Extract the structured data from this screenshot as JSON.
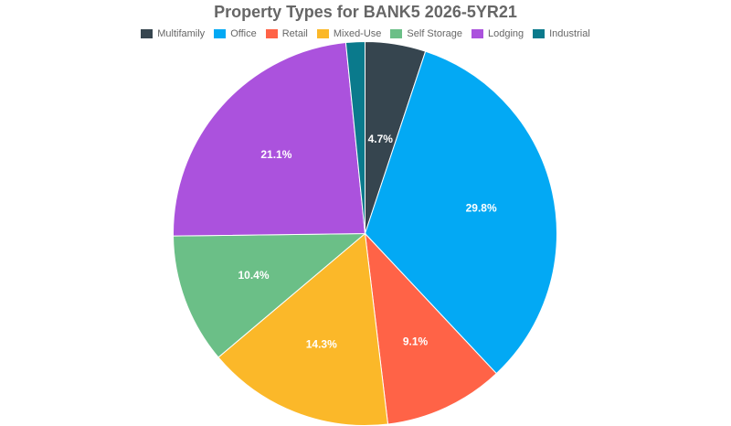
{
  "chart_data": {
    "type": "pie",
    "title": "Property Types for BANK5 2026-5YR21",
    "legend_position": "top",
    "start_angle": "12 o'clock, clockwise",
    "slices": [
      {
        "name": "Multifamily",
        "label": "4.7%",
        "value": 4.7,
        "draw": 5.1,
        "color": "#36454f"
      },
      {
        "name": "Office",
        "label": "29.8%",
        "value": 29.8,
        "draw": 32.9,
        "color": "#03a9f4"
      },
      {
        "name": "Retail",
        "label": "9.1%",
        "value": 9.1,
        "draw": 10.1,
        "color": "#ff6347"
      },
      {
        "name": "Mixed-Use",
        "label": "14.3%",
        "value": 14.3,
        "draw": 15.75,
        "color": "#fbb829"
      },
      {
        "name": "Self Storage",
        "label": "10.4%",
        "value": 10.4,
        "draw": 10.95,
        "color": "#6bbf87"
      },
      {
        "name": "Lodging",
        "label": "21.1%",
        "value": 21.1,
        "draw": 23.6,
        "color": "#ab52dd"
      },
      {
        "name": "Industrial",
        "label": "",
        "value": 1.6,
        "draw": 1.6,
        "color": "#0a7a8c"
      }
    ]
  }
}
